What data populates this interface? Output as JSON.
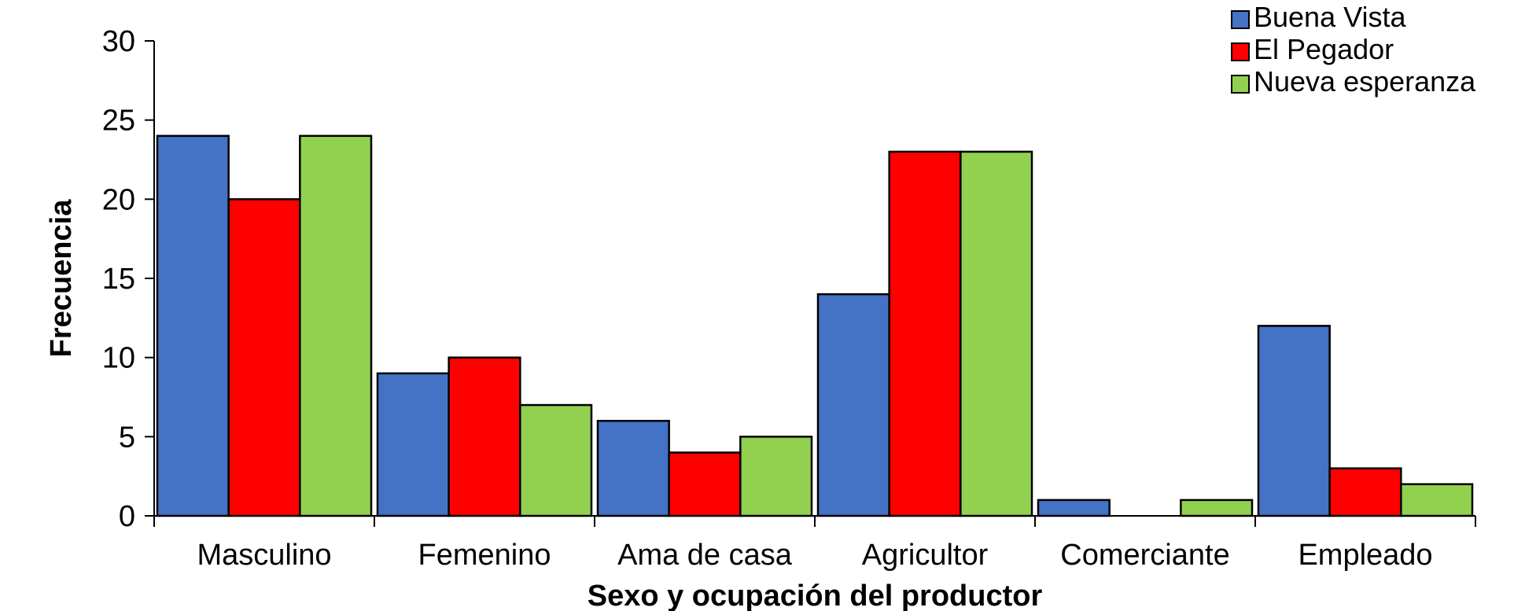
{
  "chart_data": {
    "type": "bar",
    "categories": [
      "Masculino",
      "Femenino",
      "Ama de casa",
      "Agricultor",
      "Comerciante",
      "Empleado"
    ],
    "series": [
      {
        "name": "Buena Vista",
        "color": "#4472C4",
        "values": [
          24,
          9,
          6,
          14,
          1,
          12
        ]
      },
      {
        "name": "El Pegador",
        "color": "#FF0000",
        "values": [
          20,
          10,
          4,
          23,
          0,
          3
        ]
      },
      {
        "name": "Nueva esperanza",
        "color": "#92D050",
        "values": [
          24,
          7,
          5,
          23,
          1,
          2
        ]
      }
    ],
    "xlabel": "Sexo y ocupación del productor",
    "ylabel": "Frecuencia",
    "ylim": [
      0,
      30
    ],
    "yticks": [
      0,
      5,
      10,
      15,
      20,
      25,
      30
    ],
    "grid": false,
    "legend_position": "top-right"
  }
}
